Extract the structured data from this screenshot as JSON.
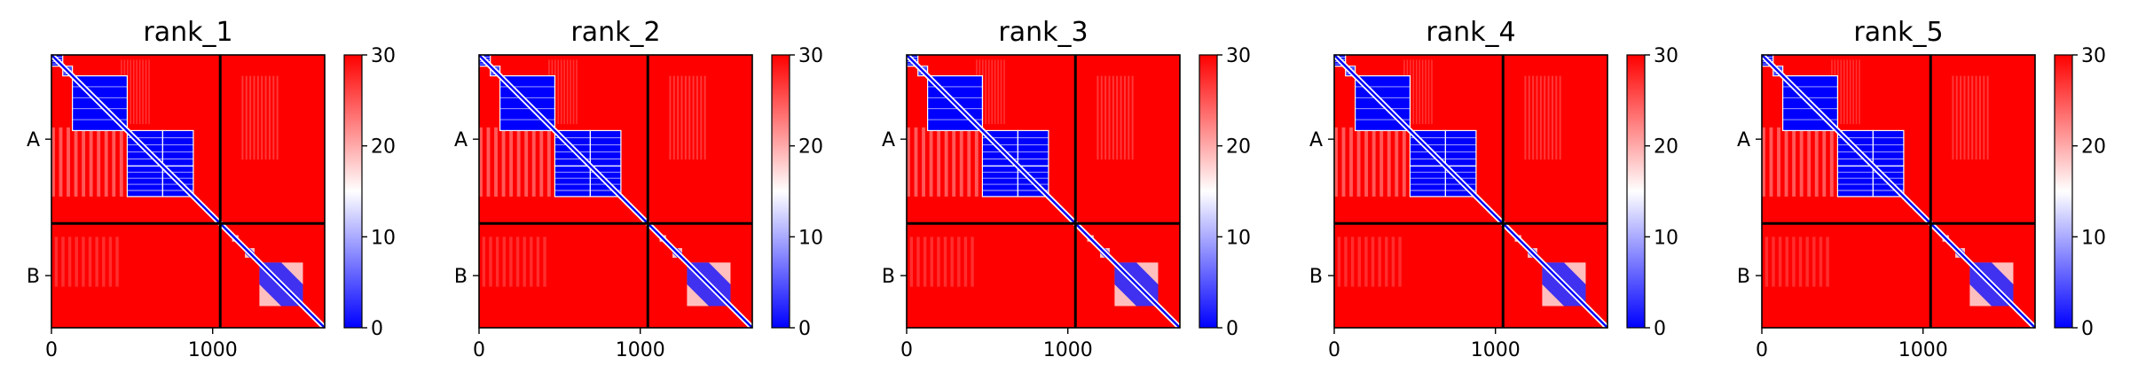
{
  "chart_data": [
    {
      "type": "heatmap",
      "title": "rank_1",
      "xticks": [
        0,
        1000
      ],
      "yticklabels": [
        "A",
        "B"
      ],
      "colorbar_ticks": [
        0,
        10,
        20,
        30
      ],
      "clim": [
        0,
        30
      ],
      "n": 1695,
      "divider": 1047
    },
    {
      "type": "heatmap",
      "title": "rank_2",
      "xticks": [
        0,
        1000
      ],
      "yticklabels": [
        "A",
        "B"
      ],
      "colorbar_ticks": [
        0,
        10,
        20,
        30
      ],
      "clim": [
        0,
        30
      ],
      "n": 1695,
      "divider": 1047
    },
    {
      "type": "heatmap",
      "title": "rank_3",
      "xticks": [
        0,
        1000
      ],
      "yticklabels": [
        "A",
        "B"
      ],
      "colorbar_ticks": [
        0,
        10,
        20,
        30
      ],
      "clim": [
        0,
        30
      ],
      "n": 1695,
      "divider": 1047
    },
    {
      "type": "heatmap",
      "title": "rank_4",
      "xticks": [
        0,
        1000
      ],
      "yticklabels": [
        "A",
        "B"
      ],
      "colorbar_ticks": [
        0,
        10,
        20,
        30
      ],
      "clim": [
        0,
        30
      ],
      "n": 1695,
      "divider": 1047
    },
    {
      "type": "heatmap",
      "title": "rank_5",
      "xticks": [
        0,
        1000
      ],
      "yticklabels": [
        "A",
        "B"
      ],
      "colorbar_ticks": [
        0,
        10,
        20,
        30
      ],
      "clim": [
        0,
        30
      ],
      "n": 1695,
      "divider": 1047
    }
  ],
  "colors": {
    "low": "#0000ff",
    "mid": "#ffffff",
    "high": "#ff0000"
  }
}
